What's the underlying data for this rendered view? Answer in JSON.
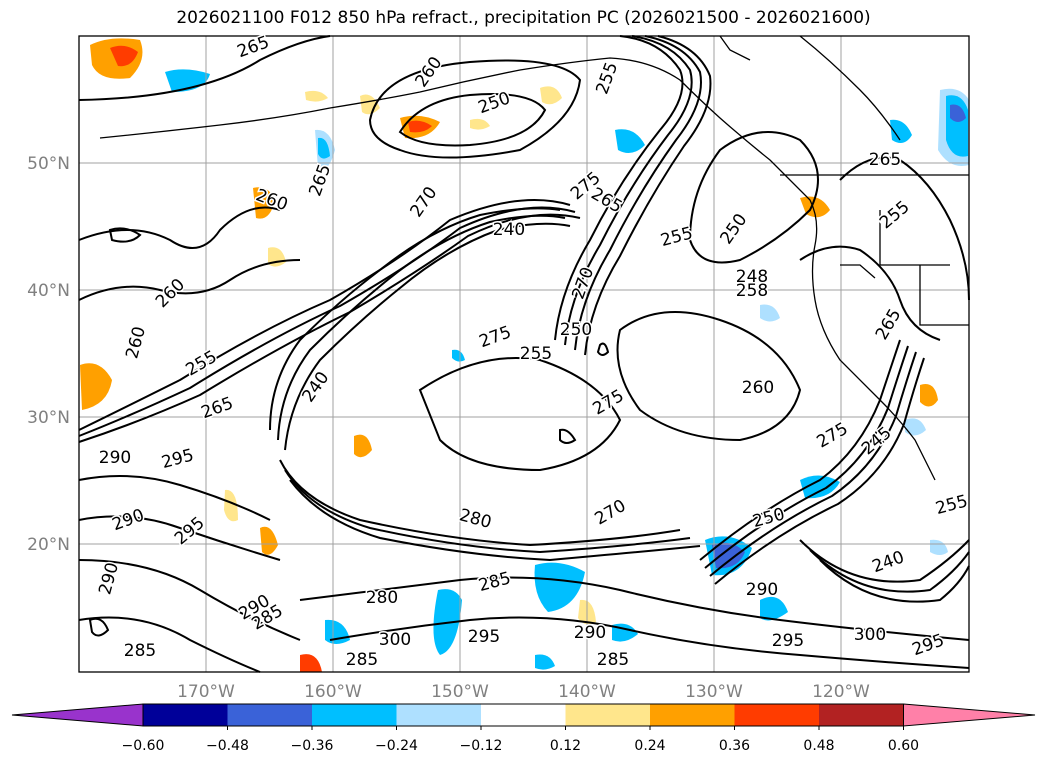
{
  "title": "2026021100 F012 850 hPa refract., precipitation PC (2026021500 - 2026021600)",
  "map": {
    "lat_labels": [
      "50°N",
      "40°N",
      "30°N",
      "20°N"
    ],
    "lon_labels": [
      "170°W",
      "160°W",
      "150°W",
      "140°W",
      "130°W",
      "120°W"
    ],
    "contour_labels": [
      "265",
      "260",
      "250",
      "255",
      "265",
      "260",
      "265",
      "270",
      "240",
      "275",
      "265",
      "255",
      "250",
      "248",
      "258",
      "260",
      "255",
      "260",
      "265",
      "275",
      "250",
      "240",
      "270",
      "255",
      "260",
      "275",
      "270",
      "280",
      "290",
      "295",
      "290",
      "295",
      "290",
      "285",
      "280",
      "285",
      "300",
      "290",
      "295",
      "285",
      "290",
      "295",
      "250",
      "240",
      "255",
      "265",
      "245",
      "275",
      "300",
      "295",
      "285",
      "285",
      "290",
      "255"
    ],
    "colors": {
      "orange": "#ffa000",
      "red_orange": "#ff3c00",
      "yellow": "#ffe68c",
      "light_blue": "#aee0ff",
      "blue": "#00bfff",
      "mid_blue": "#3a62d8",
      "contour": "#000000",
      "coast": "#000000",
      "grid": "#a0a0a0"
    }
  },
  "colorbar": {
    "tick_labels": [
      "−0.60",
      "−0.48",
      "−0.36",
      "−0.24",
      "−0.12",
      "0.12",
      "0.24",
      "0.36",
      "0.48",
      "0.60"
    ],
    "colors": [
      "#9933cc",
      "#000099",
      "#3a62d8",
      "#00bfff",
      "#aee0ff",
      "#ffffff",
      "#ffe68c",
      "#ffa000",
      "#ff3c00",
      "#b22222",
      "#ff80a8"
    ]
  }
}
